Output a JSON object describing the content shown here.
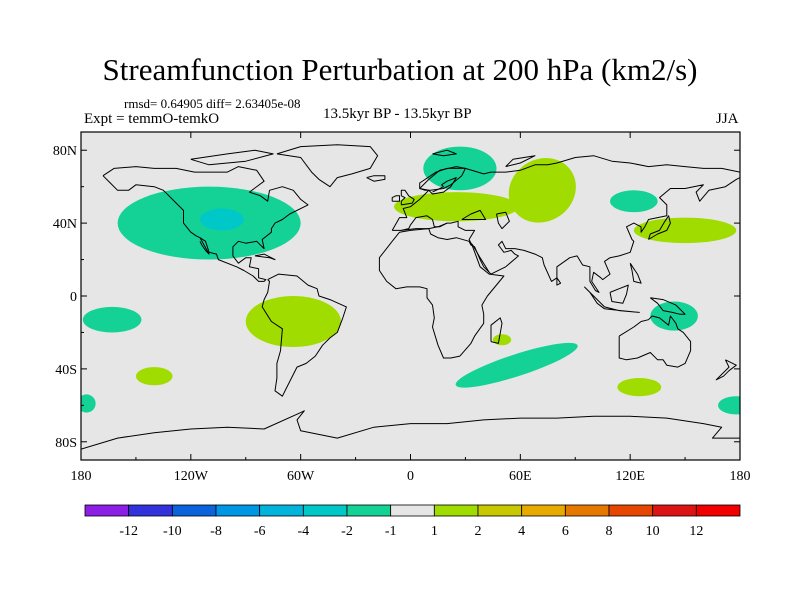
{
  "chart_data": {
    "type": "contour-map",
    "title": "Streamfunction Perturbation at 200 hPa (km2/s)",
    "stats": "rmsd= 0.64905 diff= 2.63405e-08",
    "experiment": "Expt = temmO-temkO",
    "period": "13.5kyr BP - 13.5kyr BP",
    "season": "JJA",
    "projection": "cylindrical equidistant",
    "lon_range": [
      -180,
      180
    ],
    "lat_range": [
      -90,
      90
    ],
    "x_ticks": [
      {
        "value": -180,
        "label": "180"
      },
      {
        "value": -120,
        "label": "120W"
      },
      {
        "value": -60,
        "label": "60W"
      },
      {
        "value": 0,
        "label": "0"
      },
      {
        "value": 60,
        "label": "60E"
      },
      {
        "value": 120,
        "label": "120E"
      },
      {
        "value": 180,
        "label": "180"
      }
    ],
    "y_ticks": [
      {
        "value": 80,
        "label": "80N"
      },
      {
        "value": 40,
        "label": "40N"
      },
      {
        "value": 0,
        "label": "0"
      },
      {
        "value": -40,
        "label": "40S"
      },
      {
        "value": -80,
        "label": "80S"
      }
    ],
    "colorbar": {
      "levels": [
        "-12",
        "-10",
        "-8",
        "-6",
        "-4",
        "-2",
        "-1",
        "1",
        "2",
        "4",
        "6",
        "8",
        "10",
        "12"
      ],
      "colors": [
        "#8c1ee6",
        "#3232dc",
        "#0a64dc",
        "#0096e6",
        "#00b4dc",
        "#00c8c8",
        "#14d296",
        "#e6e6e6",
        "#a0dc00",
        "#c8c800",
        "#e6aa00",
        "#e67800",
        "#e64600",
        "#dc1414",
        "#f00000"
      ]
    },
    "anomalies": [
      {
        "name": "north-america-negative",
        "lon": -110,
        "lat": 40,
        "rlon": 50,
        "rlat": 20,
        "band": "-2 to -1"
      },
      {
        "name": "rockies-core",
        "lon": -103,
        "lat": 42,
        "rlon": 12,
        "rlat": 6,
        "band": "-4 to -2"
      },
      {
        "name": "south-america-positive",
        "lon": -64,
        "lat": -14,
        "rlon": 26,
        "rlat": 14,
        "band": "1 to 2"
      },
      {
        "name": "north-atlantic-negative",
        "lon": 27,
        "lat": 70,
        "rlon": 20,
        "rlat": 12,
        "band": "-2 to -1"
      },
      {
        "name": "eurasia-positive-west",
        "lon": 25,
        "lat": 49,
        "rlon": 34,
        "rlat": 8,
        "band": "1 to 2"
      },
      {
        "name": "eurasia-positive-east",
        "lon": 72,
        "lat": 58,
        "rlon": 19,
        "rlat": 17,
        "band": "1 to 2"
      },
      {
        "name": "siberia-negative",
        "lon": 122,
        "lat": 52,
        "rlon": 13,
        "rlat": 6,
        "band": "-2 to -1"
      },
      {
        "name": "north-pacific-positive",
        "lon": 150,
        "lat": 36,
        "rlon": 28,
        "rlat": 7,
        "band": "1 to 2"
      },
      {
        "name": "pacific-negative-west",
        "lon": -163,
        "lat": -13,
        "rlon": 16,
        "rlat": 7,
        "band": "-2 to -1"
      },
      {
        "name": "pacific-positive-small",
        "lon": -140,
        "lat": -44,
        "rlon": 10,
        "rlat": 5,
        "band": "1 to 2"
      },
      {
        "name": "australia-negative",
        "lon": 144,
        "lat": -11,
        "rlon": 13,
        "rlat": 8,
        "band": "-2 to -1"
      },
      {
        "name": "southern-ocean-negative",
        "lon": 58,
        "lat": -38,
        "rlon": 35,
        "rlat": 6,
        "band": "-2 to -1"
      },
      {
        "name": "madagascar-positive",
        "lon": 50,
        "lat": -24,
        "rlon": 5,
        "rlat": 3,
        "band": "1 to 2"
      },
      {
        "name": "south-indian-positive",
        "lon": 125,
        "lat": -50,
        "rlon": 12,
        "rlat": 5,
        "band": "1 to 2"
      },
      {
        "name": "dateline-negative-east",
        "lon": 178,
        "lat": -60,
        "rlon": 10,
        "rlat": 5,
        "band": "-2 to -1"
      },
      {
        "name": "dateline-negative-west",
        "lon": -177,
        "lat": -59,
        "rlon": 5,
        "rlat": 5,
        "band": "-2 to -1"
      }
    ]
  }
}
